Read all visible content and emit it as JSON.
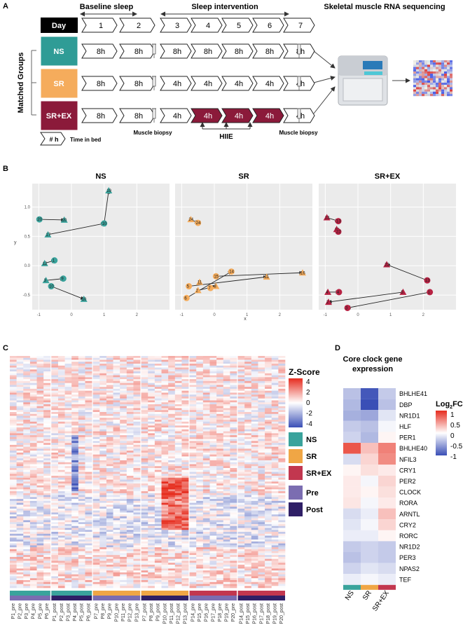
{
  "panel_a": {
    "letter": "A",
    "baseline_label": "Baseline sleep",
    "intervention_label": "Sleep intervention",
    "rnaseq_label": "Skeletal muscle RNA sequencing",
    "day_label": "Day",
    "days": [
      "1",
      "2",
      "3",
      "4",
      "5",
      "6",
      "7"
    ],
    "matched_groups_label": "Matched Groups",
    "groups": [
      {
        "name": "NS",
        "color": "#2f9c96",
        "hours": [
          "8h",
          "8h",
          "8h",
          "8h",
          "8h",
          "8h",
          "8h"
        ]
      },
      {
        "name": "SR",
        "color": "#f5ac5c",
        "hours": [
          "8h",
          "8h",
          "4h",
          "4h",
          "4h",
          "4h",
          "4h"
        ]
      },
      {
        "name": "SR+EX",
        "color": "#8b1a3a",
        "hours": [
          "8h",
          "8h",
          "4h",
          "4h",
          "4h",
          "4h",
          "4h"
        ]
      }
    ],
    "biopsy_label_1": "Muscle biopsy",
    "biopsy_label_2": "Muscle biopsy",
    "hiie_label": "HIIE",
    "legend_hash": "# h",
    "legend_text": "Time in bed"
  },
  "panel_b": {
    "letter": "B",
    "xlabel": "x",
    "ylabel": "y",
    "facets": [
      "NS",
      "SR",
      "SR+EX"
    ],
    "chart_data": {
      "type": "scatter",
      "xlim": [
        -1.2,
        3.0
      ],
      "ylim": [
        -0.75,
        1.4
      ],
      "xticks": [
        "-1",
        "0",
        "1",
        "2"
      ],
      "yticks": [
        "-0.5",
        "0.0",
        "0.5",
        "1.0"
      ],
      "series": [
        {
          "name": "NS",
          "color": "#3aa39c",
          "points": [
            {
              "id": "19",
              "x": 1.14,
              "y": 1.28
            },
            {
              "id": "10",
              "x": 1.0,
              "y": 0.72
            },
            {
              "id": "17",
              "x": -0.72,
              "y": 0.53
            },
            {
              "id": "20",
              "x": -0.98,
              "y": 0.79
            },
            {
              "id": "20",
              "x": -0.22,
              "y": 0.78
            },
            {
              "id": "1",
              "x": -0.52,
              "y": 0.09
            },
            {
              "id": "12",
              "x": -0.82,
              "y": 0.04
            },
            {
              "id": "9",
              "x": -0.25,
              "y": -0.22
            },
            {
              "id": "3",
              "x": -0.78,
              "y": -0.25
            },
            {
              "id": "10",
              "x": -0.62,
              "y": -0.35
            },
            {
              "id": "10",
              "x": 0.38,
              "y": -0.57
            }
          ],
          "arrows": [
            {
              "from": [
                -0.72,
                0.53
              ],
              "to": [
                1.0,
                0.72
              ]
            },
            {
              "from": [
                1.0,
                0.72
              ],
              "to": [
                1.14,
                1.28
              ]
            },
            {
              "from": [
                -0.98,
                0.79
              ],
              "to": [
                -0.22,
                0.78
              ]
            },
            {
              "from": [
                -0.82,
                0.04
              ],
              "to": [
                -0.52,
                0.09
              ]
            },
            {
              "from": [
                -0.78,
                -0.25
              ],
              "to": [
                -0.25,
                -0.22
              ]
            },
            {
              "from": [
                -0.62,
                -0.35
              ],
              "to": [
                0.38,
                -0.57
              ]
            }
          ]
        },
        {
          "name": "SR",
          "color": "#f5ac5c",
          "points": [
            {
              "id": "24",
              "x": -0.72,
              "y": 0.79
            },
            {
              "id": "24",
              "x": -0.5,
              "y": 0.73
            },
            {
              "id": "16",
              "x": 2.7,
              "y": -0.12
            },
            {
              "id": "14",
              "x": 0.52,
              "y": -0.1
            },
            {
              "id": "11",
              "x": 1.6,
              "y": -0.19
            },
            {
              "id": "15",
              "x": 0.05,
              "y": -0.18
            },
            {
              "id": "11",
              "x": -0.45,
              "y": -0.28
            },
            {
              "id": "5",
              "x": -0.78,
              "y": -0.35
            },
            {
              "id": "8",
              "x": 0.05,
              "y": -0.35
            },
            {
              "id": "6",
              "x": -0.85,
              "y": -0.55
            },
            {
              "id": "2",
              "x": -0.5,
              "y": -0.42
            },
            {
              "id": "7",
              "x": -0.12,
              "y": -0.38
            }
          ],
          "arrows": [
            {
              "from": [
                -0.72,
                0.79
              ],
              "to": [
                -0.5,
                0.73
              ]
            },
            {
              "from": [
                0.05,
                -0.18
              ],
              "to": [
                2.7,
                -0.12
              ]
            },
            {
              "from": [
                -0.78,
                -0.35
              ],
              "to": [
                1.6,
                -0.19
              ]
            },
            {
              "from": [
                -0.85,
                -0.55
              ],
              "to": [
                0.52,
                -0.1
              ]
            },
            {
              "from": [
                -0.5,
                -0.42
              ],
              "to": [
                0.05,
                -0.35
              ]
            }
          ]
        },
        {
          "name": "SR+EX",
          "color": "#b72243",
          "points": [
            {
              "id": "13",
              "x": -0.95,
              "y": 0.82
            },
            {
              "id": "13",
              "x": -0.6,
              "y": 0.76
            },
            {
              "id": "18",
              "x": -0.65,
              "y": 0.62
            },
            {
              "id": "22",
              "x": -0.6,
              "y": 0.58
            },
            {
              "id": "22",
              "x": 0.88,
              "y": 0.02
            },
            {
              "id": "13",
              "x": 2.12,
              "y": -0.25
            },
            {
              "id": "4",
              "x": -0.92,
              "y": -0.45
            },
            {
              "id": "4",
              "x": -0.58,
              "y": -0.45
            },
            {
              "id": "5",
              "x": 1.38,
              "y": -0.45
            },
            {
              "id": "1",
              "x": 2.2,
              "y": -0.45
            },
            {
              "id": "2",
              "x": -0.9,
              "y": -0.62
            },
            {
              "id": "3",
              "x": -0.32,
              "y": -0.72
            }
          ],
          "arrows": [
            {
              "from": [
                -0.95,
                0.82
              ],
              "to": [
                -0.6,
                0.76
              ]
            },
            {
              "from": [
                2.12,
                -0.25
              ],
              "to": [
                0.88,
                0.02
              ]
            },
            {
              "from": [
                -0.92,
                -0.45
              ],
              "to": [
                -0.58,
                -0.45
              ]
            },
            {
              "from": [
                2.2,
                -0.45
              ],
              "to": [
                -0.32,
                -0.72
              ]
            },
            {
              "from": [
                1.38,
                -0.45
              ],
              "to": [
                -0.9,
                -0.62
              ]
            }
          ]
        }
      ]
    }
  },
  "panel_c": {
    "letter": "C",
    "zscore_title": "Z-Score",
    "zscore_ticks": [
      "4",
      "2",
      "0",
      "-2",
      "-4"
    ],
    "group_legend": [
      {
        "label": "NS",
        "color": "#3aa39c"
      },
      {
        "label": "SR",
        "color": "#f0a645"
      },
      {
        "label": "SR+EX",
        "color": "#c2374f"
      }
    ],
    "time_legend": [
      {
        "label": "Pre",
        "color": "#7b6db1"
      },
      {
        "label": "Post",
        "color": "#2f1f66"
      }
    ],
    "column_blocks": [
      {
        "group": "NS",
        "time": "Pre",
        "samples": [
          "P1_pre",
          "P2_pre",
          "P3_pre",
          "P4_pre",
          "P5_pre",
          "P6_pre"
        ]
      },
      {
        "group": "NS",
        "time": "Post",
        "samples": [
          "P1_post",
          "P2_post",
          "P3_post",
          "P4_post",
          "P5_post",
          "P6_post"
        ]
      },
      {
        "group": "SR",
        "time": "Pre",
        "samples": [
          "P7_pre",
          "P8_pre",
          "P9_pre",
          "P10_pre",
          "P11_pre",
          "P12_pre",
          "P13_pre"
        ]
      },
      {
        "group": "SR",
        "time": "Post",
        "samples": [
          "P7_post",
          "P8_post",
          "P9_post",
          "P10_post",
          "P11_post",
          "P12_post",
          "P13_post"
        ]
      },
      {
        "group": "SR+EX",
        "time": "Pre",
        "samples": [
          "P14_pre",
          "P15_pre",
          "P16_pre",
          "P17_pre",
          "P18_pre",
          "P19_pre",
          "P20_pre"
        ]
      },
      {
        "group": "SR+EX",
        "time": "Post",
        "samples": [
          "P14_post",
          "P15_post",
          "P16_post",
          "P17_post",
          "P18_post",
          "P19_post",
          "P20_post"
        ]
      }
    ]
  },
  "panel_d": {
    "letter": "D",
    "title_line1": "Core clock gene",
    "title_line2": "expression",
    "legend_title": "Log",
    "legend_sub": "2",
    "legend_suffix": "FC",
    "legend_ticks": [
      "1",
      "0.5",
      "0",
      "-0.5",
      "-1"
    ],
    "chart_data": {
      "type": "heatmap",
      "columns": [
        "NS",
        "SR",
        "SR+EX"
      ],
      "column_colors": [
        "#3aa39c",
        "#f0a645",
        "#c2374f"
      ],
      "rows": [
        "BHLHE41",
        "DBP",
        "NR1D1",
        "HLF",
        "PER1",
        "BHLHE40",
        "NFIL3",
        "CRY1",
        "PER2",
        "CLOCK",
        "RORA",
        "ARNTL",
        "CRY2",
        "RORC",
        "NR1D2",
        "PER3",
        "NPAS2",
        "TEF"
      ],
      "values": [
        [
          -0.35,
          -0.95,
          -0.3
        ],
        [
          -0.4,
          -1.0,
          -0.35
        ],
        [
          -0.45,
          -0.5,
          -0.15
        ],
        [
          -0.3,
          -0.35,
          -0.05
        ],
        [
          -0.25,
          -0.4,
          0.05
        ],
        [
          0.8,
          0.3,
          0.6
        ],
        [
          -0.2,
          0.2,
          0.55
        ],
        [
          0.05,
          0.15,
          0.1
        ],
        [
          0.1,
          -0.05,
          0.2
        ],
        [
          0.1,
          0.05,
          0.15
        ],
        [
          0.12,
          -0.05,
          0.1
        ],
        [
          -0.2,
          -0.1,
          0.3
        ],
        [
          -0.15,
          -0.05,
          0.2
        ],
        [
          -0.1,
          -0.1,
          0.05
        ],
        [
          -0.3,
          -0.25,
          -0.3
        ],
        [
          -0.35,
          -0.25,
          -0.3
        ],
        [
          -0.25,
          -0.15,
          -0.2
        ],
        [
          -0.1,
          -0.05,
          -0.1
        ]
      ],
      "vmin": -1,
      "vmax": 1
    }
  }
}
